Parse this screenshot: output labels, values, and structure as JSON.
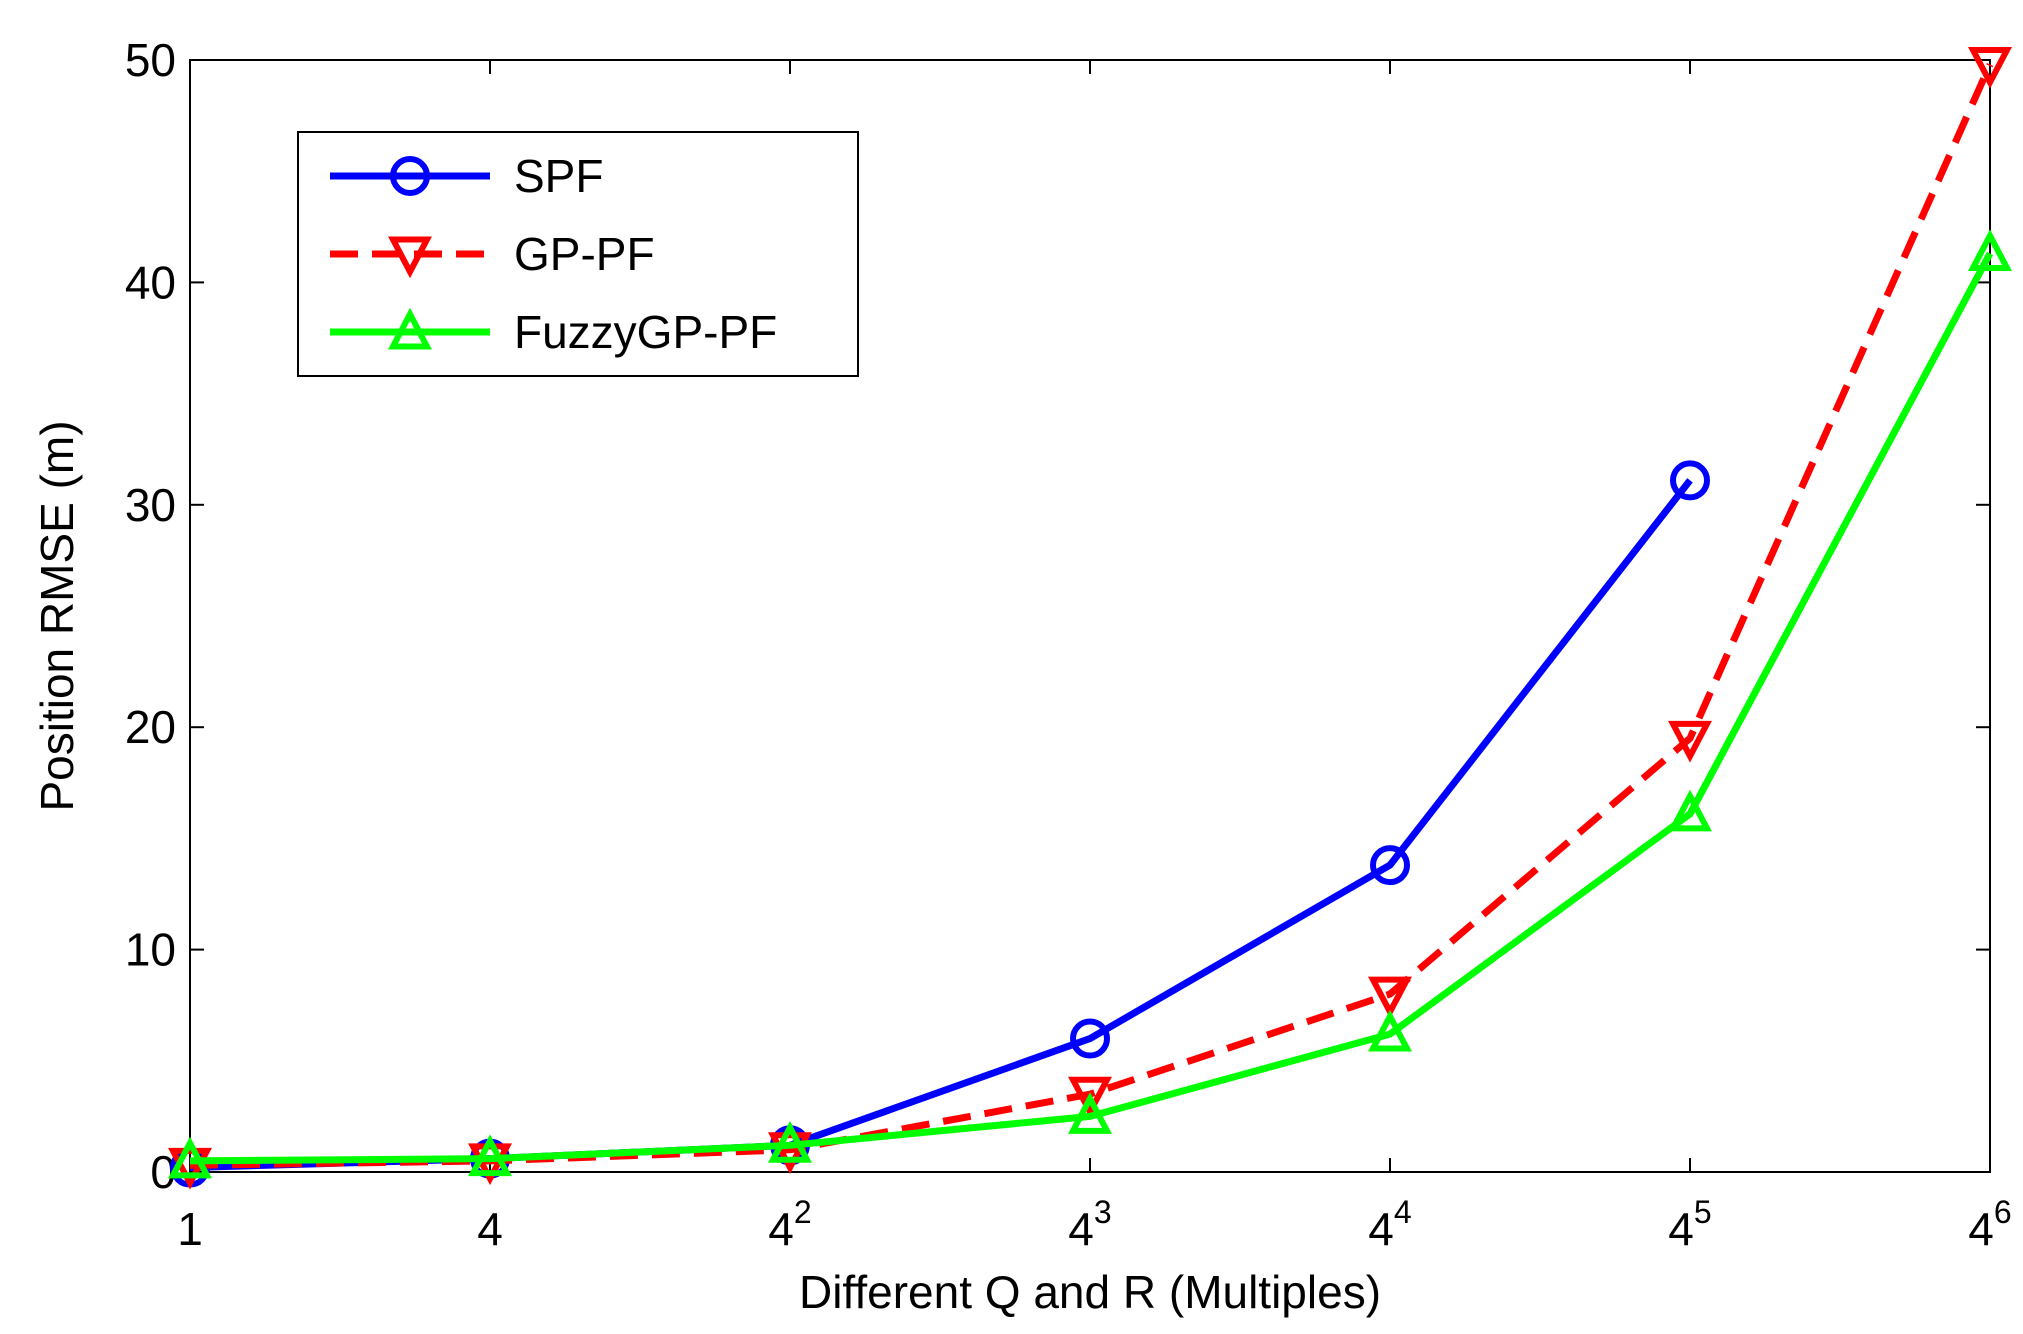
{
  "chart_data": {
    "type": "line",
    "xlabel": "Different Q and R (Multiples)",
    "ylabel": "Position RMSE (m)",
    "ylim": [
      0,
      50
    ],
    "yticks": [
      0,
      10,
      20,
      30,
      40,
      50
    ],
    "ytick_labels": [
      "0",
      "10",
      "20",
      "30",
      "40",
      "50"
    ],
    "categories": [
      "1",
      "4",
      "4^2",
      "4^3",
      "4^4",
      "4^5",
      "4^6"
    ],
    "xtick_labels": [
      {
        "base": "1",
        "exp": ""
      },
      {
        "base": "4",
        "exp": ""
      },
      {
        "base": "4",
        "exp": "2"
      },
      {
        "base": "4",
        "exp": "3"
      },
      {
        "base": "4",
        "exp": "4"
      },
      {
        "base": "4",
        "exp": "5"
      },
      {
        "base": "4",
        "exp": "6"
      }
    ],
    "legend_position": "top-left",
    "series": [
      {
        "name": "SPF",
        "color": "#0000ff",
        "dash": "solid",
        "marker": "circle",
        "values": [
          0.2,
          0.6,
          1.2,
          6.0,
          13.8,
          31.1,
          null
        ]
      },
      {
        "name": "GP-PF",
        "color": "#ff0000",
        "dash": "dashed",
        "marker": "triangle-down",
        "values": [
          0.3,
          0.5,
          1.0,
          3.5,
          8.0,
          19.5,
          49.8
        ]
      },
      {
        "name": "FuzzyGP-PF",
        "color": "#00ff00",
        "dash": "solid",
        "marker": "triangle-up",
        "values": [
          0.5,
          0.6,
          1.2,
          2.5,
          6.2,
          16.1,
          41.3
        ]
      }
    ]
  }
}
